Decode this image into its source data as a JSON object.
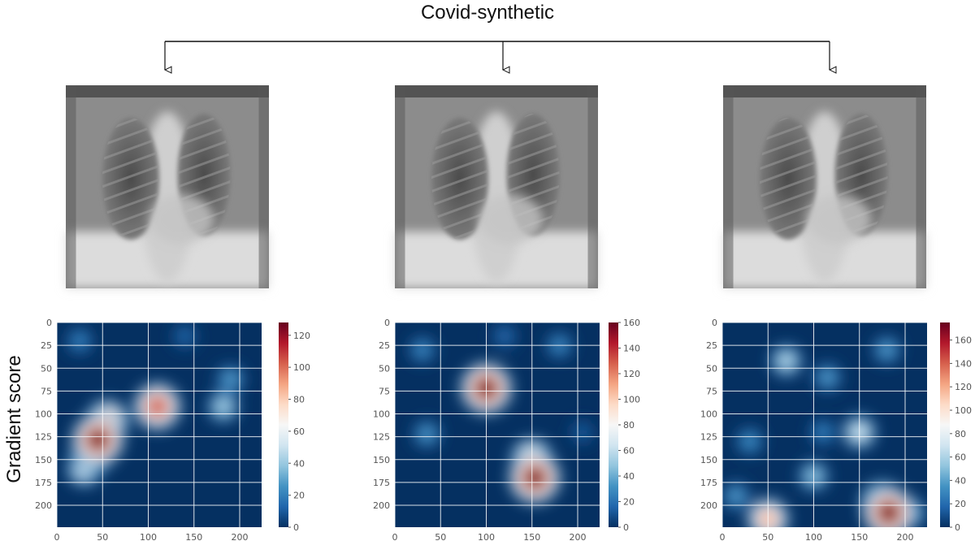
{
  "figure": {
    "title": "Covid-synthetic",
    "row_label": "Gradient score"
  },
  "colormap": [
    "#053061",
    "#2166ac",
    "#4393c3",
    "#92c5de",
    "#d1e5f0",
    "#f7f7f7",
    "#fddbc7",
    "#f4a582",
    "#d6604d",
    "#b2182b",
    "#67001f"
  ],
  "chart_data": [
    {
      "type": "heatmap",
      "title": "",
      "xlabel": "",
      "ylabel": "",
      "xlim": [
        0,
        224
      ],
      "ylim": [
        224,
        0
      ],
      "xticks": [
        "0",
        "50",
        "100",
        "150",
        "200"
      ],
      "yticks": [
        "0",
        "25",
        "50",
        "75",
        "100",
        "125",
        "150",
        "175",
        "200"
      ],
      "grid": true,
      "colorbar": {
        "min": 0,
        "max": 128,
        "ticks": [
          "0",
          "20",
          "40",
          "60",
          "80",
          "100",
          "120"
        ]
      },
      "hotspots": [
        {
          "x": 45,
          "y": 128,
          "intensity": 128
        },
        {
          "x": 40,
          "y": 140,
          "intensity": 100
        },
        {
          "x": 55,
          "y": 108,
          "intensity": 90
        },
        {
          "x": 30,
          "y": 160,
          "intensity": 60
        },
        {
          "x": 110,
          "y": 92,
          "intensity": 110
        },
        {
          "x": 182,
          "y": 92,
          "intensity": 45
        },
        {
          "x": 190,
          "y": 62,
          "intensity": 30
        },
        {
          "x": 25,
          "y": 20,
          "intensity": 22
        },
        {
          "x": 140,
          "y": 15,
          "intensity": 15
        }
      ]
    },
    {
      "type": "heatmap",
      "title": "",
      "xlabel": "",
      "ylabel": "",
      "xlim": [
        0,
        224
      ],
      "ylim": [
        224,
        0
      ],
      "xticks": [
        "0",
        "50",
        "100",
        "150",
        "200"
      ],
      "yticks": [
        "0",
        "25",
        "50",
        "75",
        "100",
        "125",
        "150",
        "175",
        "200"
      ],
      "grid": true,
      "colorbar": {
        "min": 0,
        "max": 160,
        "ticks": [
          "0",
          "20",
          "40",
          "60",
          "80",
          "100",
          "120",
          "140",
          "160"
        ]
      },
      "hotspots": [
        {
          "x": 100,
          "y": 72,
          "intensity": 160
        },
        {
          "x": 153,
          "y": 170,
          "intensity": 160
        },
        {
          "x": 150,
          "y": 150,
          "intensity": 110
        },
        {
          "x": 35,
          "y": 122,
          "intensity": 35
        },
        {
          "x": 30,
          "y": 30,
          "intensity": 30
        },
        {
          "x": 180,
          "y": 25,
          "intensity": 30
        },
        {
          "x": 120,
          "y": 15,
          "intensity": 20
        },
        {
          "x": 205,
          "y": 120,
          "intensity": 15
        }
      ]
    },
    {
      "type": "heatmap",
      "title": "",
      "xlabel": "",
      "ylabel": "",
      "xlim": [
        0,
        224
      ],
      "ylim": [
        224,
        0
      ],
      "xticks": [
        "0",
        "50",
        "100",
        "150",
        "200"
      ],
      "yticks": [
        "0",
        "25",
        "50",
        "75",
        "100",
        "125",
        "150",
        "175",
        "200"
      ],
      "grid": true,
      "colorbar": {
        "min": 0,
        "max": 175,
        "ticks": [
          "0",
          "20",
          "40",
          "60",
          "80",
          "100",
          "120",
          "140",
          "160"
        ]
      },
      "hotspots": [
        {
          "x": 182,
          "y": 208,
          "intensity": 175
        },
        {
          "x": 175,
          "y": 198,
          "intensity": 130
        },
        {
          "x": 50,
          "y": 215,
          "intensity": 120
        },
        {
          "x": 150,
          "y": 120,
          "intensity": 75
        },
        {
          "x": 70,
          "y": 42,
          "intensity": 65
        },
        {
          "x": 100,
          "y": 168,
          "intensity": 55
        },
        {
          "x": 205,
          "y": 208,
          "intensity": 60
        },
        {
          "x": 115,
          "y": 60,
          "intensity": 40
        },
        {
          "x": 180,
          "y": 30,
          "intensity": 40
        },
        {
          "x": 30,
          "y": 130,
          "intensity": 35
        },
        {
          "x": 110,
          "y": 120,
          "intensity": 30
        },
        {
          "x": 15,
          "y": 190,
          "intensity": 40
        }
      ]
    }
  ]
}
